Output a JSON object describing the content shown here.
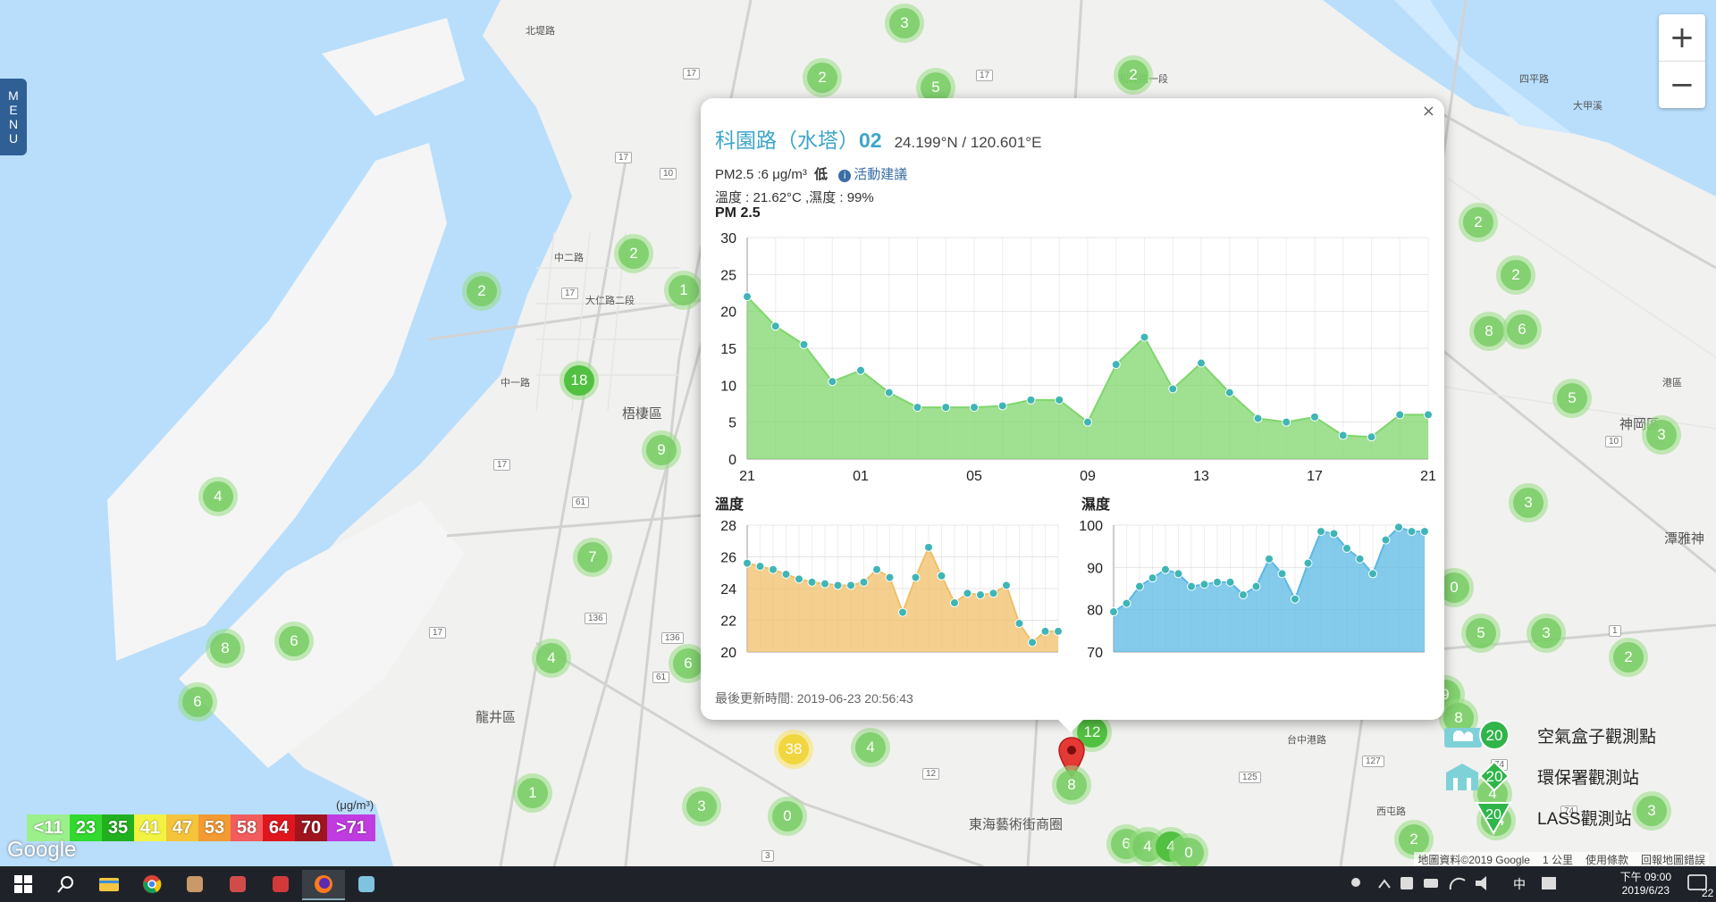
{
  "sidebar": {
    "menu_label": "MENU"
  },
  "zoom": {
    "in_label": "+",
    "out_label": "−"
  },
  "map": {
    "places": [
      "梧棲區",
      "龍井區",
      "神岡區",
      "潭雅神",
      "東海藝術街商圈",
      "北堤路",
      "大仁路二段",
      "中二路",
      "中一路",
      "和睦路一段",
      "港區",
      "四平路",
      "大甲溪",
      "西屯路",
      "台中港路"
    ],
    "route_shields": [
      "17",
      "17",
      "17",
      "17",
      "17",
      "17",
      "10",
      "61",
      "61",
      "136",
      "136",
      "127",
      "125",
      "12",
      "74",
      "74",
      "10",
      "3",
      "1"
    ],
    "clusters": [
      {
        "label": "3",
        "style": "normal"
      },
      {
        "label": "2",
        "style": "normal"
      },
      {
        "label": "5",
        "style": "normal"
      },
      {
        "label": "2",
        "style": "normal"
      },
      {
        "label": "2",
        "style": "normal"
      },
      {
        "label": "2",
        "style": "normal"
      },
      {
        "label": "1",
        "style": "normal"
      },
      {
        "label": "18",
        "style": "strong"
      },
      {
        "label": "9",
        "style": "normal"
      },
      {
        "label": "4",
        "style": "normal"
      },
      {
        "label": "7",
        "style": "normal"
      },
      {
        "label": "8",
        "style": "normal"
      },
      {
        "label": "6",
        "style": "normal"
      },
      {
        "label": "6",
        "style": "normal"
      },
      {
        "label": "4",
        "style": "normal"
      },
      {
        "label": "6",
        "style": "normal"
      },
      {
        "label": "1",
        "style": "normal"
      },
      {
        "label": "3",
        "style": "normal"
      },
      {
        "label": "0",
        "style": "normal"
      },
      {
        "label": "38",
        "style": "yellow"
      },
      {
        "label": "4",
        "style": "normal"
      },
      {
        "label": "12",
        "style": "strong"
      },
      {
        "label": "6",
        "style": "normal"
      },
      {
        "label": "4",
        "style": "normal"
      },
      {
        "label": "4",
        "style": "strong"
      },
      {
        "label": "0",
        "style": "normal"
      },
      {
        "label": "2",
        "style": "normal"
      },
      {
        "label": "2",
        "style": "normal"
      },
      {
        "label": "8",
        "style": "normal"
      },
      {
        "label": "6",
        "style": "normal"
      },
      {
        "label": "5",
        "style": "normal"
      },
      {
        "label": "3",
        "style": "normal"
      },
      {
        "label": "3",
        "style": "normal"
      },
      {
        "label": "0",
        "style": "normal"
      },
      {
        "label": "5",
        "style": "normal"
      },
      {
        "label": "3",
        "style": "normal"
      },
      {
        "label": "2",
        "style": "normal"
      },
      {
        "label": "9",
        "style": "normal"
      },
      {
        "label": "8",
        "style": "normal"
      },
      {
        "label": "4",
        "style": "normal"
      },
      {
        "label": "14",
        "style": "normal"
      },
      {
        "label": "3",
        "style": "normal"
      },
      {
        "label": "2",
        "style": "normal"
      }
    ],
    "pin_cluster_label": "8"
  },
  "popup": {
    "title": "科園路（水塔）",
    "title_suffix": "02",
    "coords": "24.199°N / 120.601°E",
    "pm_text": "PM2.5 :6 μg/m³",
    "pm_level": "低",
    "advice_icon": "info-icon",
    "advice_label": "活動建議",
    "temp_humidity": "溫度 : 21.62°C ,濕度 : 99%",
    "pm_chart_title": "PM 2.5",
    "temp_chart_title": "溫度",
    "humidity_chart_title": "濕度",
    "updated": "最後更新時間: 2019-06-23 20:56:43",
    "close_label": "×"
  },
  "chart_data": [
    {
      "type": "area",
      "title": "PM 2.5",
      "x_ticks": [
        "21",
        "01",
        "05",
        "09",
        "13",
        "17",
        "21"
      ],
      "ylim": [
        0,
        30
      ],
      "y_ticks": [
        0,
        5,
        10,
        15,
        20,
        25,
        30
      ],
      "values": [
        22,
        18,
        15.5,
        10.5,
        12,
        9,
        7,
        7,
        7,
        7.2,
        8,
        8,
        5,
        12.8,
        16.5,
        9.5,
        13,
        9,
        5.5,
        5,
        5.7,
        3.2,
        3,
        6,
        6
      ],
      "color": "#7fd66c"
    },
    {
      "type": "area",
      "title": "溫度",
      "ylim": [
        20,
        28
      ],
      "y_ticks": [
        20,
        22,
        24,
        26,
        28
      ],
      "values": [
        25.6,
        25.4,
        25.2,
        24.9,
        24.6,
        24.4,
        24.3,
        24.2,
        24.2,
        24.4,
        25.2,
        24.7,
        22.5,
        24.7,
        26.6,
        24.8,
        23.1,
        23.7,
        23.6,
        23.7,
        24.2,
        21.8,
        20.6,
        21.3,
        21.3
      ],
      "color": "#f0bf68"
    },
    {
      "type": "area",
      "title": "濕度",
      "ylim": [
        70,
        100
      ],
      "y_ticks": [
        70,
        80,
        90,
        100
      ],
      "values": [
        79.5,
        81.5,
        85.5,
        87.5,
        89.5,
        88.5,
        85.5,
        86,
        86.5,
        86.5,
        83.5,
        85.5,
        92,
        88.5,
        82.5,
        91,
        98.5,
        98,
        94.5,
        92,
        88.5,
        96.5,
        99.5,
        98.5,
        98.5
      ],
      "color": "#5ab8e4"
    }
  ],
  "legend": {
    "items": [
      {
        "icon": "air-box-icon",
        "value": "20",
        "label": "空氣盒子觀測點"
      },
      {
        "icon": "epa-station-icon",
        "value": "20",
        "label": "環保署觀測站"
      },
      {
        "icon": "lass-station-icon",
        "value": "20",
        "label": "LASS觀測站"
      }
    ]
  },
  "aqi_scale": {
    "unit": "(μg/m³)",
    "steps": [
      {
        "label": "<11",
        "color": "#9bf08c"
      },
      {
        "label": "23",
        "color": "#32d92e"
      },
      {
        "label": "35",
        "color": "#22b01e"
      },
      {
        "label": "41",
        "color": "#f2f242"
      },
      {
        "label": "47",
        "color": "#f5c43a"
      },
      {
        "label": "53",
        "color": "#f29b32"
      },
      {
        "label": "58",
        "color": "#f25c5c"
      },
      {
        "label": "64",
        "color": "#e0161e"
      },
      {
        "label": "70",
        "color": "#a0141e"
      },
      {
        "label": ">71",
        "color": "#c03ce0"
      }
    ]
  },
  "google_logo": "Google",
  "attribution": {
    "data": "地圖資料©2019 Google",
    "scale": "1 公里",
    "terms": "使用條款",
    "report": "回報地圖錯誤"
  },
  "taskbar": {
    "apps": [
      "windows-start-icon",
      "search-icon",
      "file-explorer-icon",
      "chrome-icon",
      "app-icon-1",
      "app-icon-2",
      "app-icon-3",
      "firefox-icon",
      "app-icon-4"
    ],
    "time": "下午 09:00",
    "date": "2019/6/23",
    "ime": "中",
    "notifications": "22"
  }
}
